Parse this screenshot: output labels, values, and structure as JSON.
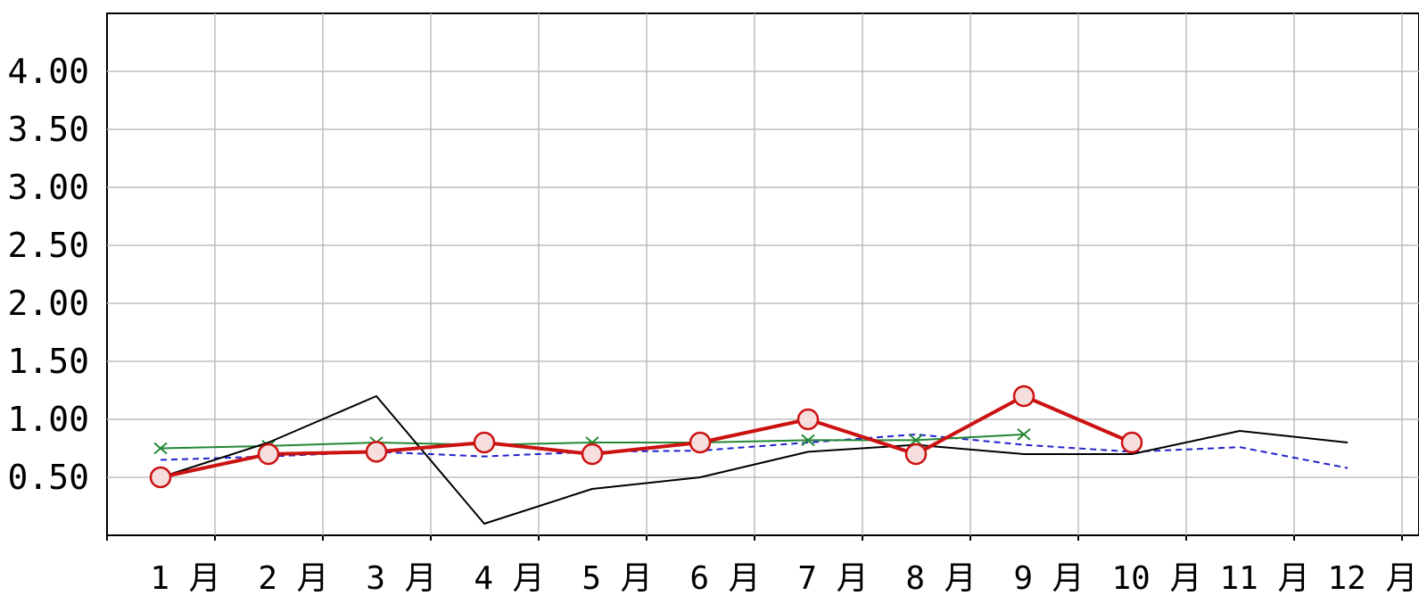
{
  "chart_data": {
    "type": "line",
    "title": "",
    "xlabel": "",
    "ylabel": "",
    "categories": [
      "1 月",
      "2 月",
      "3 月",
      "4 月",
      "5 月",
      "6 月",
      "7 月",
      "8 月",
      "9 月",
      "10 月",
      "11 月",
      "12 月"
    ],
    "ylim": [
      0.0,
      4.5
    ],
    "yticks": [
      "0.50",
      "1.00",
      "1.50",
      "2.00",
      "2.50",
      "3.00",
      "3.50",
      "4.00"
    ],
    "grid": true,
    "legend": "none",
    "series": [
      {
        "values": [
          0.5,
          0.7,
          0.72,
          0.8,
          0.7,
          0.8,
          1.0,
          0.7,
          1.2,
          0.8,
          null,
          null
        ],
        "color": "#cc1111",
        "marker": "circle",
        "style": "solid-thick"
      },
      {
        "values": [
          0.5,
          0.8,
          1.2,
          0.1,
          0.4,
          0.5,
          0.72,
          0.78,
          0.7,
          0.7,
          0.9,
          0.8
        ],
        "color": "#000000",
        "marker": "none",
        "style": "solid-thin"
      },
      {
        "values": [
          0.75,
          0.77,
          0.8,
          0.78,
          0.8,
          0.8,
          0.82,
          0.82,
          0.87,
          null,
          null,
          null
        ],
        "color": "#228833",
        "marker": "x",
        "style": "solid-thin"
      },
      {
        "values": [
          0.65,
          0.68,
          0.72,
          0.68,
          0.72,
          0.73,
          0.8,
          0.87,
          0.78,
          0.72,
          0.76,
          0.58
        ],
        "color": "#2222cc",
        "marker": "none",
        "style": "dashed"
      }
    ]
  }
}
